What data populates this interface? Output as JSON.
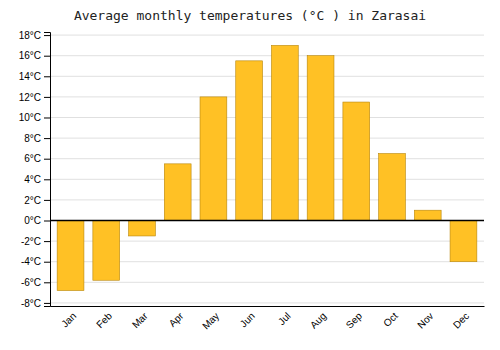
{
  "chart_data": {
    "type": "bar",
    "title": "Average monthly temperatures (°C ) in Zarasai",
    "categories": [
      "Jan",
      "Feb",
      "Mar",
      "Apr",
      "May",
      "Jun",
      "Jul",
      "Aug",
      "Sep",
      "Oct",
      "Nov",
      "Dec"
    ],
    "values": [
      -6.8,
      -5.8,
      -1.5,
      5.5,
      12.0,
      15.5,
      17.0,
      16.0,
      11.5,
      6.5,
      1.0,
      -4.0
    ],
    "color": "#FFC125",
    "ylim": [
      -8.3,
      18.3
    ],
    "yticks": [
      {
        "value": -8,
        "label": "-8°C"
      },
      {
        "value": -6,
        "label": "-6°C"
      },
      {
        "value": -4,
        "label": "-4°C"
      },
      {
        "value": -2,
        "label": "-2°C"
      },
      {
        "value": 0,
        "label": "0°C"
      },
      {
        "value": 2,
        "label": "2°C"
      },
      {
        "value": 4,
        "label": "4°C"
      },
      {
        "value": 6,
        "label": "6°C"
      },
      {
        "value": 8,
        "label": "8°C"
      },
      {
        "value": 10,
        "label": "10°C"
      },
      {
        "value": 12,
        "label": "12°C"
      },
      {
        "value": 14,
        "label": "14°C"
      },
      {
        "value": 16,
        "label": "16°C"
      },
      {
        "value": 18,
        "label": "18°C"
      }
    ],
    "grid": true
  }
}
